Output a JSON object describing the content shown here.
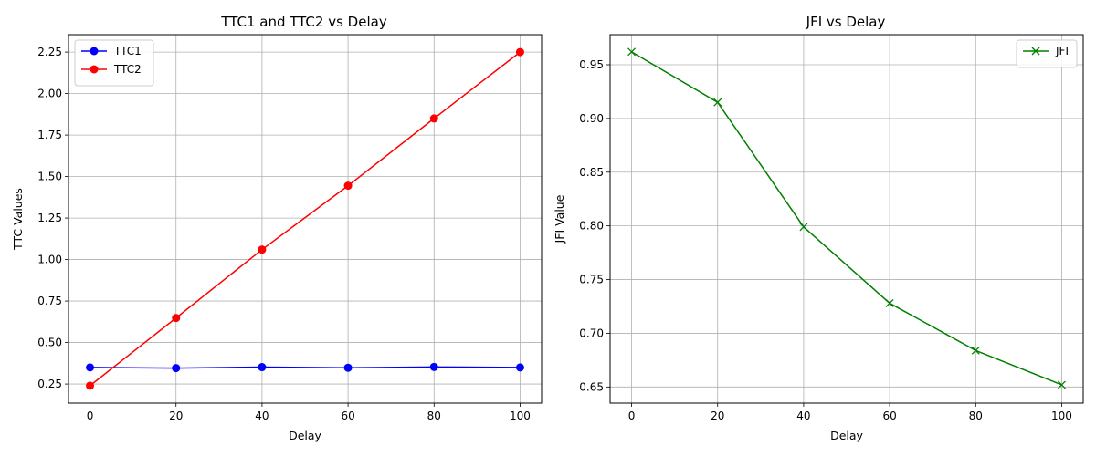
{
  "chart_data": [
    {
      "type": "line",
      "title": "TTC1 and TTC2 vs Delay",
      "xlabel": "Delay",
      "ylabel": "TTC Values",
      "x": [
        0,
        20,
        40,
        60,
        80,
        100
      ],
      "xlim": [
        -5,
        105
      ],
      "ylim": [
        0.135,
        2.355
      ],
      "xticks": [
        "0",
        "20",
        "40",
        "60",
        "80",
        "100"
      ],
      "yticks": [
        "0.25",
        "0.50",
        "0.75",
        "1.00",
        "1.25",
        "1.50",
        "1.75",
        "2.00",
        "2.25"
      ],
      "grid": true,
      "legend": "top-left",
      "series": [
        {
          "name": "TTC1",
          "color": "#0000ff",
          "marker": "circle",
          "values": [
            0.35,
            0.346,
            0.352,
            0.348,
            0.353,
            0.35
          ]
        },
        {
          "name": "TTC2",
          "color": "#ff0000",
          "marker": "circle",
          "values": [
            0.24,
            0.648,
            1.06,
            1.445,
            1.85,
            2.25
          ]
        }
      ]
    },
    {
      "type": "line",
      "title": "JFI vs Delay",
      "xlabel": "Delay",
      "ylabel": "JFI Value",
      "x": [
        0,
        20,
        40,
        60,
        80,
        100
      ],
      "xlim": [
        -5,
        105
      ],
      "ylim": [
        0.635,
        0.978
      ],
      "xticks": [
        "0",
        "20",
        "40",
        "60",
        "80",
        "100"
      ],
      "yticks": [
        "0.65",
        "0.70",
        "0.75",
        "0.80",
        "0.85",
        "0.90",
        "0.95"
      ],
      "grid": true,
      "legend": "top-right",
      "series": [
        {
          "name": "JFI",
          "color": "#008000",
          "marker": "x",
          "values": [
            0.962,
            0.915,
            0.799,
            0.728,
            0.684,
            0.652
          ]
        }
      ]
    }
  ]
}
